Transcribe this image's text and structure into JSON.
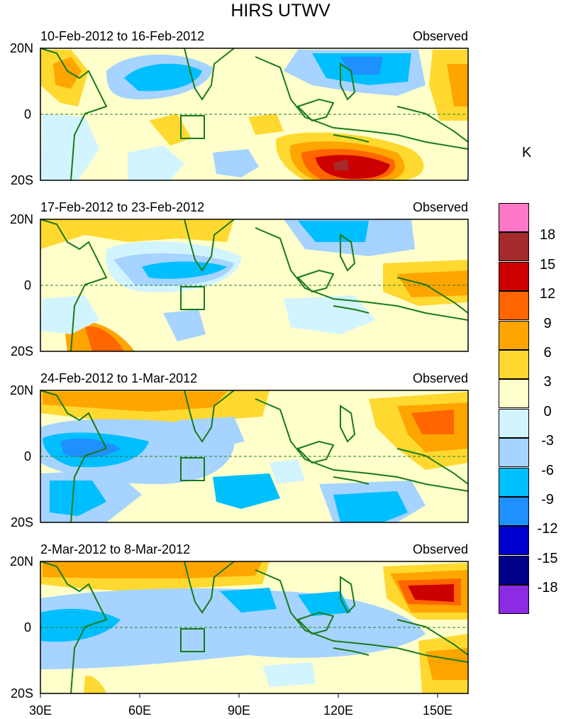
{
  "title": "HIRS UTWV",
  "units": "K",
  "colorbar": {
    "colors": [
      "#FF77C8",
      "#A52A2A",
      "#CC0000",
      "#FF6600",
      "#FFA500",
      "#FFD92F",
      "#FFFFCC",
      "#D2F4FF",
      "#A6D3FF",
      "#00BFFF",
      "#1E90FF",
      "#0000CD",
      "#00008B",
      "#8B2BE2"
    ],
    "labels": [
      "18",
      "15",
      "12",
      "9",
      "6",
      "3",
      "0",
      "-3",
      "-6",
      "-9",
      "-12",
      "-15",
      "-18"
    ]
  },
  "lat_labels": [
    "20N",
    "0",
    "20S"
  ],
  "lon_labels": [
    "30E",
    "60E",
    "90E",
    "120E",
    "150E"
  ],
  "panels": [
    {
      "date_range": "10-Feb-2012 to 16-Feb-2012",
      "status": "Observed"
    },
    {
      "date_range": "17-Feb-2012 to 23-Feb-2012",
      "status": "Observed"
    },
    {
      "date_range": "24-Feb-2012 to 1-Mar-2012",
      "status": "Observed"
    },
    {
      "date_range": "2-Mar-2012 to 8-Mar-2012",
      "status": "Observed"
    }
  ]
}
